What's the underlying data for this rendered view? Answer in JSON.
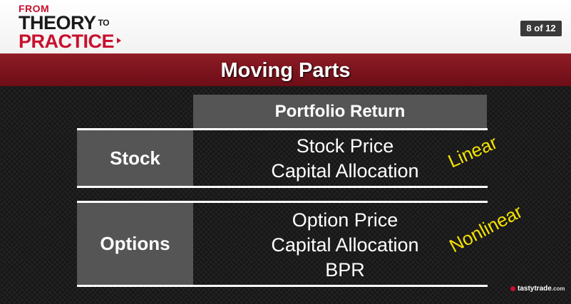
{
  "header": {
    "logo_from": "FROM",
    "logo_theory": "THEORY",
    "logo_to": "TO",
    "logo_practice": "PRACTICE",
    "page_indicator": "8 of 12"
  },
  "title": "Moving Parts",
  "table": {
    "column_header": "Portfolio Return",
    "rows": [
      {
        "label": "Stock",
        "lines": [
          "Stock Price",
          "Capital Allocation"
        ],
        "tag": "Linear"
      },
      {
        "label": "Options",
        "lines": [
          "Option Price",
          "Capital Allocation",
          "BPR"
        ],
        "tag": "Nonlinear"
      }
    ]
  },
  "branding": {
    "name": "tastytrade",
    "suffix": ".com"
  },
  "colors": {
    "accent_red": "#c8102e",
    "title_bar": "#7a1420",
    "tag_yellow": "#f5e200",
    "cell_gray": "#555555"
  }
}
